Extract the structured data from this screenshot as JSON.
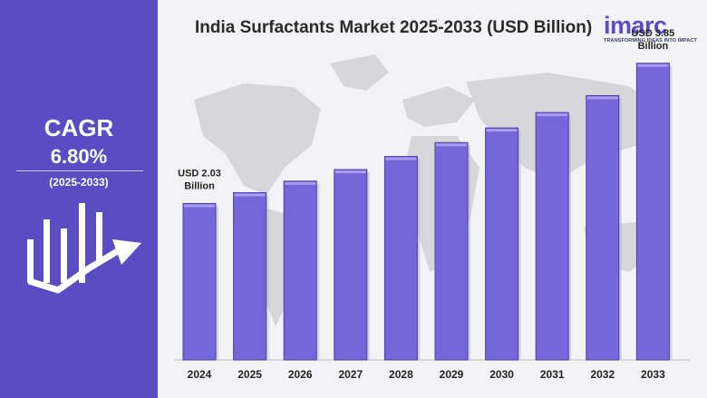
{
  "cagr": {
    "label": "CAGR",
    "value": "6.80%",
    "period": "(2025-2033)"
  },
  "brand": {
    "name": "imarc",
    "tagline": "TRANSFORMING IDEAS INTO IMPACT"
  },
  "colors": {
    "panel": "#5b4cc4",
    "bar": "#7766d9",
    "bar_top": "#a99cf0"
  },
  "chart_data": {
    "type": "bar",
    "title": "India Surfactants Market 2025-2033 (USD Billion)",
    "xlabel": "",
    "ylabel": "",
    "ylim": [
      0,
      4.2
    ],
    "grid": false,
    "categories": [
      "2024",
      "2025",
      "2026",
      "2027",
      "2028",
      "2029",
      "2030",
      "2031",
      "2032",
      "2033"
    ],
    "values": [
      2.03,
      2.17,
      2.32,
      2.47,
      2.64,
      2.82,
      3.01,
      3.21,
      3.43,
      3.85
    ],
    "annotations": [
      {
        "category": "2024",
        "text_line1": "USD 2.03",
        "text_line2": "Billion"
      },
      {
        "category": "2033",
        "text_line1": "USD 3.85",
        "text_line2": "Billion"
      }
    ]
  }
}
